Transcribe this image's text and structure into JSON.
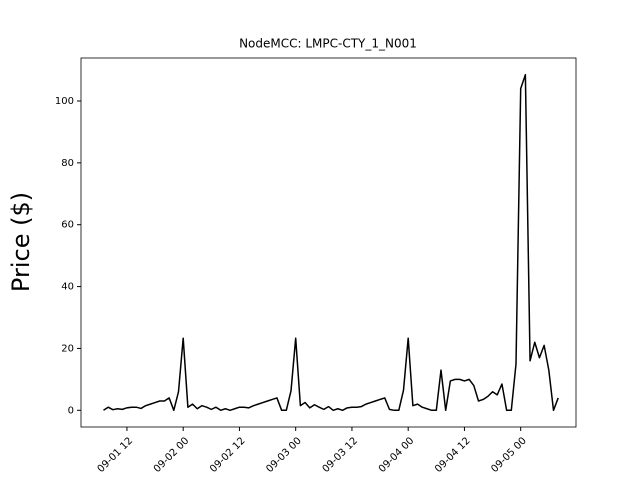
{
  "chart_data": {
    "type": "line",
    "title": "NodeMCC: LMPC-CTY_1_N001",
    "y_label": "Price ($)",
    "x": [
      "09-01 07:00",
      "09-01 08:00",
      "09-01 09:00",
      "09-01 10:00",
      "09-01 11:00",
      "09-01 12:00",
      "09-01 13:00",
      "09-01 14:00",
      "09-01 15:00",
      "09-01 16:00",
      "09-01 17:00",
      "09-01 18:00",
      "09-01 19:00",
      "09-01 20:00",
      "09-01 21:00",
      "09-01 22:00",
      "09-01 23:00",
      "09-02 00:00",
      "09-02 01:00",
      "09-02 02:00",
      "09-02 03:00",
      "09-02 04:00",
      "09-02 05:00",
      "09-02 06:00",
      "09-02 07:00",
      "09-02 08:00",
      "09-02 09:00",
      "09-02 10:00",
      "09-02 11:00",
      "09-02 12:00",
      "09-02 13:00",
      "09-02 14:00",
      "09-02 15:00",
      "09-02 16:00",
      "09-02 17:00",
      "09-02 18:00",
      "09-02 19:00",
      "09-02 20:00",
      "09-02 21:00",
      "09-02 22:00",
      "09-02 23:00",
      "09-03 00:00",
      "09-03 01:00",
      "09-03 02:00",
      "09-03 03:00",
      "09-03 04:00",
      "09-03 05:00",
      "09-03 06:00",
      "09-03 07:00",
      "09-03 08:00",
      "09-03 09:00",
      "09-03 10:00",
      "09-03 11:00",
      "09-03 12:00",
      "09-03 13:00",
      "09-03 14:00",
      "09-03 15:00",
      "09-03 16:00",
      "09-03 17:00",
      "09-03 18:00",
      "09-03 19:00",
      "09-03 20:00",
      "09-03 21:00",
      "09-03 22:00",
      "09-03 23:00",
      "09-04 00:00",
      "09-04 01:00",
      "09-04 02:00",
      "09-04 03:00",
      "09-04 04:00",
      "09-04 05:00",
      "09-04 06:00",
      "09-04 07:00",
      "09-04 08:00",
      "09-04 09:00",
      "09-04 10:00",
      "09-04 11:00",
      "09-04 12:00",
      "09-04 13:00",
      "09-04 14:00",
      "09-04 15:00",
      "09-04 16:00",
      "09-04 17:00",
      "09-04 18:00",
      "09-04 19:00",
      "09-04 20:00",
      "09-04 21:00",
      "09-04 22:00",
      "09-04 23:00",
      "09-05 00:00",
      "09-05 01:00",
      "09-05 02:00",
      "09-05 03:00",
      "09-05 04:00",
      "09-05 05:00",
      "09-05 06:00",
      "09-05 07:00",
      "09-05 08:00"
    ],
    "series": [
      {
        "color": "#000000",
        "values": [
          0,
          1,
          0.2,
          0.5,
          0.3,
          0.8,
          1,
          1,
          0.6,
          1.5,
          2,
          2.5,
          3,
          3,
          4,
          0,
          6,
          23.3,
          1,
          2,
          0.5,
          1.5,
          1,
          0.3,
          1,
          0,
          0.5,
          0,
          0.5,
          1,
          1,
          0.8,
          1.5,
          2,
          2.5,
          3,
          3.5,
          4,
          0,
          0,
          6.3,
          23.3,
          1.5,
          2.5,
          0.8,
          1.8,
          1,
          0.3,
          1.2,
          0,
          0.5,
          0,
          0.8,
          1,
          1,
          1.2,
          2,
          2.5,
          3,
          3.5,
          4,
          0.3,
          0,
          0,
          6.5,
          23.3,
          1.5,
          2,
          1,
          0.5,
          0,
          0,
          13,
          0,
          9.5,
          10,
          10,
          9.5,
          10,
          8,
          3,
          3.5,
          4.5,
          6,
          5,
          8.5,
          0,
          0,
          15,
          104,
          108.5,
          16,
          22,
          17,
          21,
          13,
          0,
          4
        ]
      }
    ],
    "xlim": [
      "09-01 02:12",
      "09-05 11:48"
    ],
    "xticks": [
      "09-01 12",
      "09-02 00",
      "09-02 12",
      "09-03 00",
      "09-03 12",
      "09-04 00",
      "09-04 12",
      "09-05 00"
    ],
    "ylim": [
      -5.4,
      113.9
    ],
    "yticks": [
      0,
      20,
      40,
      60,
      80,
      100
    ],
    "grid": false
  }
}
